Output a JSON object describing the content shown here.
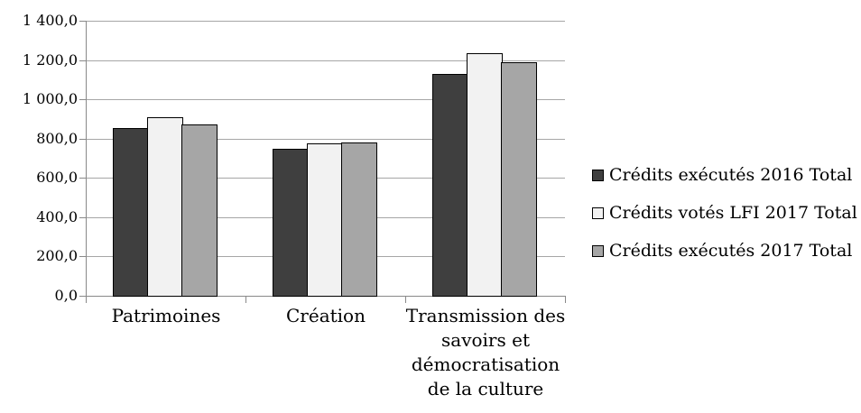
{
  "chart_data": {
    "type": "bar",
    "title": "",
    "xlabel": "",
    "ylabel": "",
    "categories": [
      "Patrimoines",
      "Création",
      "Transmission des\nsavoirs et\ndémocratisation\nde la culture"
    ],
    "series": [
      {
        "name": "Crédits exécutés 2016 Total",
        "color": "#3F3F3F",
        "values": [
          853,
          747,
          1131
        ]
      },
      {
        "name": "Crédits votés LFI 2017 Total",
        "color": "#F2F2F2",
        "values": [
          907,
          778,
          1233
        ]
      },
      {
        "name": "Crédits exécutés 2017 Total",
        "color": "#A6A6A6",
        "values": [
          874,
          782,
          1187
        ]
      }
    ],
    "ylim": [
      0,
      1400
    ],
    "ytick_step": 200,
    "ytick_labels": [
      "0,0",
      "200,0",
      "400,0",
      "600,0",
      "800,0",
      "1 000,0",
      "1 200,0",
      "1 400,0"
    ],
    "grid": true,
    "legend_position": "right",
    "colors": {
      "gridline": "#A6A6A6",
      "axis": "#898989",
      "text": "#000000",
      "background": "#FFFFFF"
    }
  }
}
